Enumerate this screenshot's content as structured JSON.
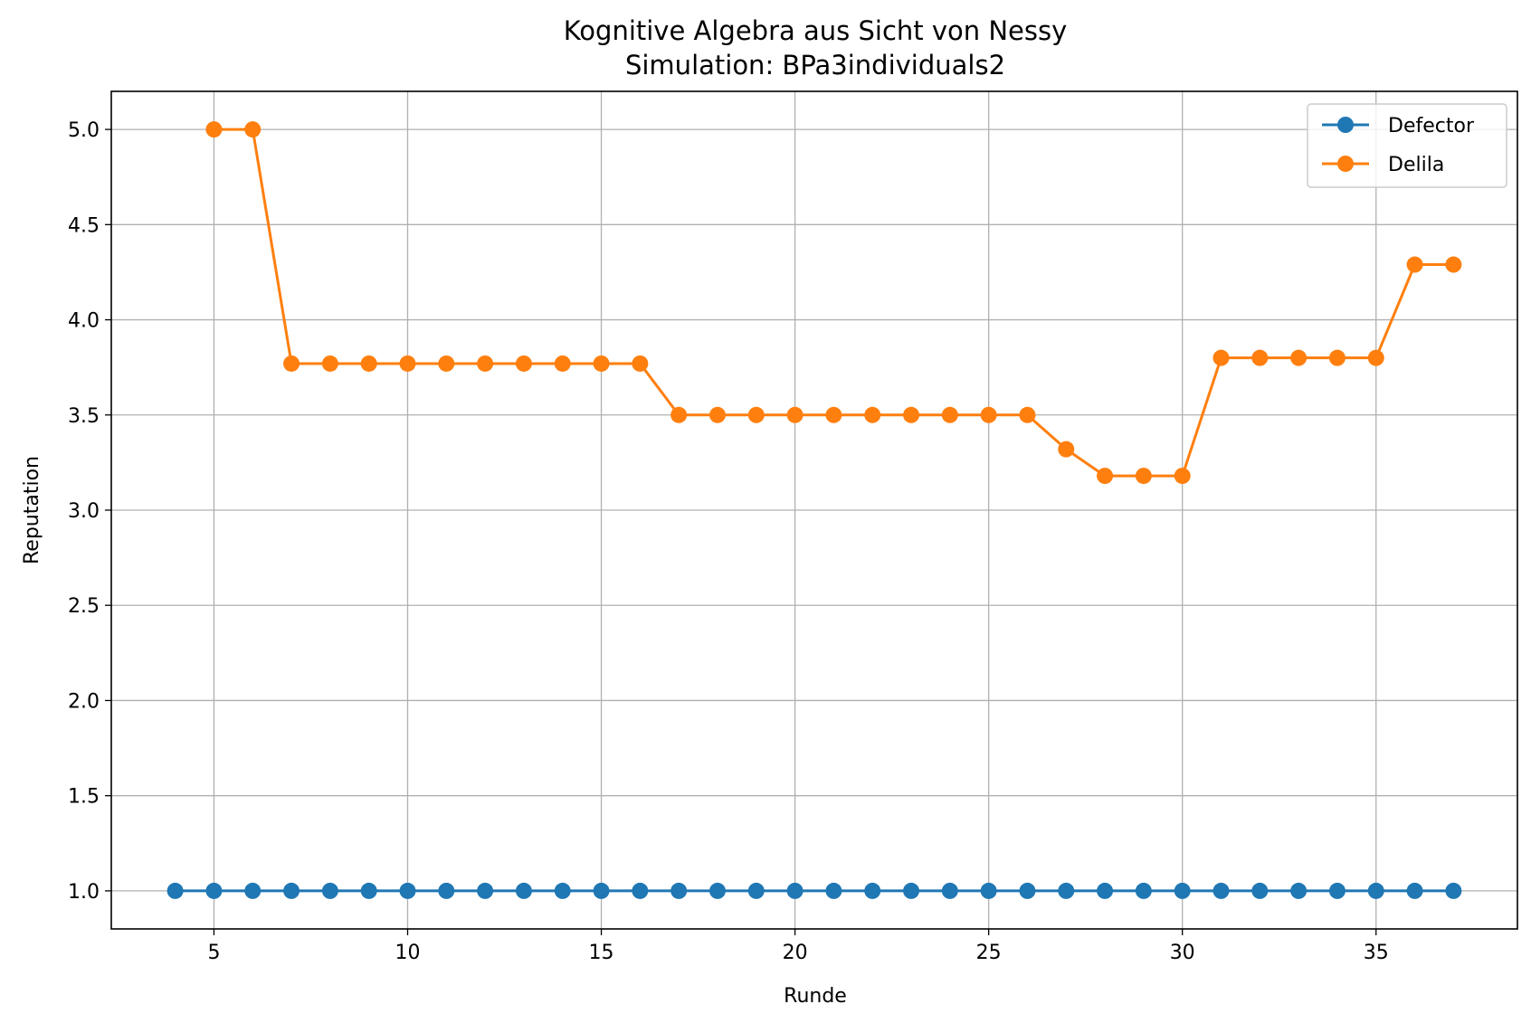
{
  "chart_data": {
    "type": "line",
    "title": "Kognitive Algebra aus Sicht von Nessy",
    "subtitle": "Simulation: BPa3individuals2",
    "xlabel": "Runde",
    "ylabel": "Reputation",
    "xlim": [
      2.35,
      38.65
    ],
    "ylim": [
      0.8,
      5.2
    ],
    "xticks": [
      5,
      10,
      15,
      20,
      25,
      30,
      35
    ],
    "xtick_labels": [
      "5",
      "10",
      "15",
      "20",
      "25",
      "30",
      "35"
    ],
    "yticks": [
      1.0,
      1.5,
      2.0,
      2.5,
      3.0,
      3.5,
      4.0,
      4.5,
      5.0
    ],
    "ytick_labels": [
      "1.0",
      "1.5",
      "2.0",
      "2.5",
      "3.0",
      "3.5",
      "4.0",
      "4.5",
      "5.0"
    ],
    "grid": true,
    "legend_position": "top-right",
    "series": [
      {
        "name": "Defector",
        "color": "#1f77b4",
        "x": [
          4,
          5,
          6,
          7,
          8,
          9,
          10,
          11,
          12,
          13,
          14,
          15,
          16,
          17,
          18,
          19,
          20,
          21,
          22,
          23,
          24,
          25,
          26,
          27,
          28,
          29,
          30,
          31,
          32,
          33,
          34,
          35,
          36,
          37
        ],
        "y": [
          1,
          1,
          1,
          1,
          1,
          1,
          1,
          1,
          1,
          1,
          1,
          1,
          1,
          1,
          1,
          1,
          1,
          1,
          1,
          1,
          1,
          1,
          1,
          1,
          1,
          1,
          1,
          1,
          1,
          1,
          1,
          1,
          1,
          1
        ]
      },
      {
        "name": "Delila",
        "color": "#ff7f0e",
        "x": [
          5,
          6,
          7,
          8,
          9,
          10,
          11,
          12,
          13,
          14,
          15,
          16,
          17,
          18,
          19,
          20,
          21,
          22,
          23,
          24,
          25,
          26,
          27,
          28,
          29,
          30,
          31,
          32,
          33,
          34,
          35,
          36,
          37
        ],
        "y": [
          5.0,
          5.0,
          3.77,
          3.77,
          3.77,
          3.77,
          3.77,
          3.77,
          3.77,
          3.77,
          3.77,
          3.77,
          3.5,
          3.5,
          3.5,
          3.5,
          3.5,
          3.5,
          3.5,
          3.5,
          3.5,
          3.5,
          3.32,
          3.18,
          3.18,
          3.18,
          3.8,
          3.8,
          3.8,
          3.8,
          3.8,
          4.29,
          4.29
        ]
      }
    ]
  }
}
